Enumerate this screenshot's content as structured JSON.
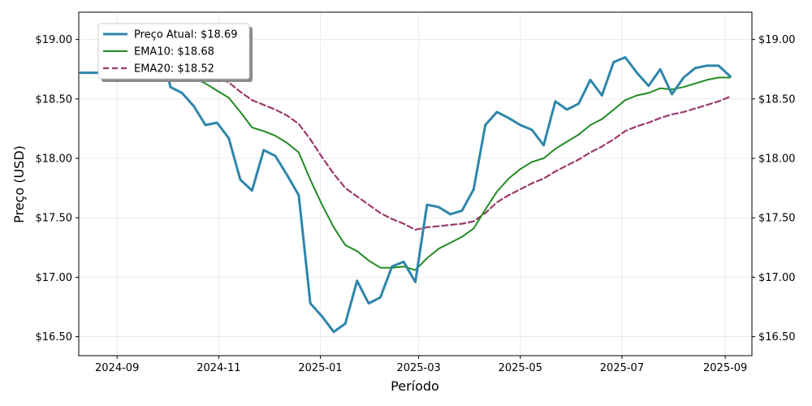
{
  "chart_data": {
    "type": "line",
    "title": "",
    "xlabel": "Período",
    "ylabel": "Preço (USD)",
    "x_range": [
      "2024-08-09",
      "2025-09-17"
    ],
    "y_range": [
      16.34,
      19.23
    ],
    "x_ticks": [
      {
        "date": "2024-09-01",
        "label": "2024-09"
      },
      {
        "date": "2024-11-01",
        "label": "2024-11"
      },
      {
        "date": "2025-01-01",
        "label": "2025-01"
      },
      {
        "date": "2025-03-01",
        "label": "2025-03"
      },
      {
        "date": "2025-05-01",
        "label": "2025-05"
      },
      {
        "date": "2025-07-01",
        "label": "2025-07"
      },
      {
        "date": "2025-09-01",
        "label": "2025-09"
      }
    ],
    "y_ticks": [
      {
        "value": 16.5,
        "label": "$16.50"
      },
      {
        "value": 17.0,
        "label": "$17.00"
      },
      {
        "value": 17.5,
        "label": "$17.50"
      },
      {
        "value": 18.0,
        "label": "$18.00"
      },
      {
        "value": 18.5,
        "label": "$18.50"
      },
      {
        "value": 19.0,
        "label": "$19.00"
      }
    ],
    "grid": true,
    "legend_position": "top-left",
    "series": [
      {
        "name": "Preço Atual: $18.69",
        "color": "#2e86ab",
        "dash": "solid",
        "points": [
          [
            "2024-08-10",
            18.72
          ],
          [
            "2024-08-20",
            18.72
          ],
          [
            "2024-09-01",
            18.72
          ],
          [
            "2024-09-15",
            18.72
          ],
          [
            "2024-10-01",
            18.72
          ],
          [
            "2024-10-03",
            18.6
          ],
          [
            "2024-10-10",
            18.55
          ],
          [
            "2024-10-17",
            18.44
          ],
          [
            "2024-10-24",
            18.28
          ],
          [
            "2024-10-31",
            18.3
          ],
          [
            "2024-11-07",
            18.17
          ],
          [
            "2024-11-14",
            17.82
          ],
          [
            "2024-11-21",
            17.73
          ],
          [
            "2024-11-28",
            18.07
          ],
          [
            "2024-12-05",
            18.02
          ],
          [
            "2024-12-12",
            17.86
          ],
          [
            "2024-12-19",
            17.69
          ],
          [
            "2024-12-26",
            16.78
          ],
          [
            "2025-01-02",
            16.67
          ],
          [
            "2025-01-09",
            16.54
          ],
          [
            "2025-01-16",
            16.61
          ],
          [
            "2025-01-23",
            16.97
          ],
          [
            "2025-01-30",
            16.78
          ],
          [
            "2025-02-06",
            16.83
          ],
          [
            "2025-02-13",
            17.09
          ],
          [
            "2025-02-20",
            17.13
          ],
          [
            "2025-02-27",
            16.96
          ],
          [
            "2025-03-06",
            17.61
          ],
          [
            "2025-03-13",
            17.59
          ],
          [
            "2025-03-20",
            17.53
          ],
          [
            "2025-03-27",
            17.56
          ],
          [
            "2025-04-03",
            17.74
          ],
          [
            "2025-04-10",
            18.28
          ],
          [
            "2025-04-17",
            18.39
          ],
          [
            "2025-04-24",
            18.34
          ],
          [
            "2025-05-01",
            18.28
          ],
          [
            "2025-05-08",
            18.24
          ],
          [
            "2025-05-15",
            18.11
          ],
          [
            "2025-05-22",
            18.48
          ],
          [
            "2025-05-29",
            18.41
          ],
          [
            "2025-06-05",
            18.46
          ],
          [
            "2025-06-12",
            18.66
          ],
          [
            "2025-06-19",
            18.53
          ],
          [
            "2025-06-26",
            18.81
          ],
          [
            "2025-07-03",
            18.85
          ],
          [
            "2025-07-10",
            18.72
          ],
          [
            "2025-07-17",
            18.61
          ],
          [
            "2025-07-24",
            18.75
          ],
          [
            "2025-07-31",
            18.54
          ],
          [
            "2025-08-07",
            18.68
          ],
          [
            "2025-08-14",
            18.76
          ],
          [
            "2025-08-21",
            18.78
          ],
          [
            "2025-08-28",
            18.78
          ],
          [
            "2025-09-04",
            18.69
          ]
        ]
      },
      {
        "name": "EMA10: $18.68",
        "color": "#228b22",
        "dash": "solid",
        "points": [
          [
            "2024-08-10",
            18.72
          ],
          [
            "2024-08-20",
            18.72
          ],
          [
            "2024-09-01",
            18.72
          ],
          [
            "2024-09-15",
            18.72
          ],
          [
            "2024-10-01",
            18.72
          ],
          [
            "2024-10-10",
            18.72
          ],
          [
            "2024-10-17",
            18.68
          ],
          [
            "2024-10-24",
            18.63
          ],
          [
            "2024-10-31",
            18.57
          ],
          [
            "2024-11-07",
            18.51
          ],
          [
            "2024-11-14",
            18.39
          ],
          [
            "2024-11-21",
            18.26
          ],
          [
            "2024-11-28",
            18.23
          ],
          [
            "2024-12-05",
            18.19
          ],
          [
            "2024-12-12",
            18.13
          ],
          [
            "2024-12-19",
            18.05
          ],
          [
            "2024-12-26",
            17.82
          ],
          [
            "2025-01-02",
            17.61
          ],
          [
            "2025-01-09",
            17.42
          ],
          [
            "2025-01-16",
            17.27
          ],
          [
            "2025-01-23",
            17.22
          ],
          [
            "2025-01-30",
            17.14
          ],
          [
            "2025-02-06",
            17.08
          ],
          [
            "2025-02-13",
            17.08
          ],
          [
            "2025-02-20",
            17.09
          ],
          [
            "2025-02-27",
            17.06
          ],
          [
            "2025-03-06",
            17.16
          ],
          [
            "2025-03-13",
            17.24
          ],
          [
            "2025-03-20",
            17.29
          ],
          [
            "2025-03-27",
            17.34
          ],
          [
            "2025-04-03",
            17.41
          ],
          [
            "2025-04-10",
            17.57
          ],
          [
            "2025-04-17",
            17.72
          ],
          [
            "2025-04-24",
            17.83
          ],
          [
            "2025-05-01",
            17.91
          ],
          [
            "2025-05-08",
            17.97
          ],
          [
            "2025-05-15",
            18.0
          ],
          [
            "2025-05-22",
            18.08
          ],
          [
            "2025-05-29",
            18.14
          ],
          [
            "2025-06-05",
            18.2
          ],
          [
            "2025-06-12",
            18.28
          ],
          [
            "2025-06-19",
            18.33
          ],
          [
            "2025-06-26",
            18.41
          ],
          [
            "2025-07-03",
            18.49
          ],
          [
            "2025-07-10",
            18.53
          ],
          [
            "2025-07-17",
            18.55
          ],
          [
            "2025-07-24",
            18.59
          ],
          [
            "2025-07-31",
            18.58
          ],
          [
            "2025-08-07",
            18.6
          ],
          [
            "2025-08-14",
            18.63
          ],
          [
            "2025-08-21",
            18.66
          ],
          [
            "2025-08-28",
            18.68
          ],
          [
            "2025-09-04",
            18.68
          ]
        ]
      },
      {
        "name": "EMA20: $18.52",
        "color": "#9b3a6c",
        "dash": "dashed",
        "points": [
          [
            "2024-08-10",
            18.72
          ],
          [
            "2024-08-20",
            18.72
          ],
          [
            "2024-09-01",
            18.72
          ],
          [
            "2024-09-15",
            18.72
          ],
          [
            "2024-10-01",
            18.72
          ],
          [
            "2024-10-10",
            18.72
          ],
          [
            "2024-10-17",
            18.72
          ],
          [
            "2024-10-24",
            18.7
          ],
          [
            "2024-10-31",
            18.68
          ],
          [
            "2024-11-07",
            18.64
          ],
          [
            "2024-11-14",
            18.56
          ],
          [
            "2024-11-21",
            18.49
          ],
          [
            "2024-11-28",
            18.45
          ],
          [
            "2024-12-05",
            18.41
          ],
          [
            "2024-12-12",
            18.36
          ],
          [
            "2024-12-19",
            18.29
          ],
          [
            "2024-12-26",
            18.16
          ],
          [
            "2025-01-02",
            18.01
          ],
          [
            "2025-01-09",
            17.87
          ],
          [
            "2025-01-16",
            17.75
          ],
          [
            "2025-01-23",
            17.68
          ],
          [
            "2025-01-30",
            17.61
          ],
          [
            "2025-02-06",
            17.54
          ],
          [
            "2025-02-13",
            17.49
          ],
          [
            "2025-02-20",
            17.45
          ],
          [
            "2025-02-27",
            17.4
          ],
          [
            "2025-03-06",
            17.42
          ],
          [
            "2025-03-13",
            17.43
          ],
          [
            "2025-03-20",
            17.44
          ],
          [
            "2025-03-27",
            17.45
          ],
          [
            "2025-04-03",
            17.47
          ],
          [
            "2025-04-10",
            17.54
          ],
          [
            "2025-04-17",
            17.63
          ],
          [
            "2025-04-24",
            17.69
          ],
          [
            "2025-05-01",
            17.74
          ],
          [
            "2025-05-08",
            17.79
          ],
          [
            "2025-05-15",
            17.83
          ],
          [
            "2025-05-22",
            17.89
          ],
          [
            "2025-05-29",
            17.94
          ],
          [
            "2025-06-05",
            17.99
          ],
          [
            "2025-06-12",
            18.05
          ],
          [
            "2025-06-19",
            18.1
          ],
          [
            "2025-06-26",
            18.16
          ],
          [
            "2025-07-03",
            18.23
          ],
          [
            "2025-07-10",
            18.27
          ],
          [
            "2025-07-17",
            18.3
          ],
          [
            "2025-07-24",
            18.34
          ],
          [
            "2025-07-31",
            18.37
          ],
          [
            "2025-08-07",
            18.39
          ],
          [
            "2025-08-14",
            18.42
          ],
          [
            "2025-08-21",
            18.45
          ],
          [
            "2025-08-28",
            18.48
          ],
          [
            "2025-09-04",
            18.52
          ]
        ]
      }
    ]
  }
}
